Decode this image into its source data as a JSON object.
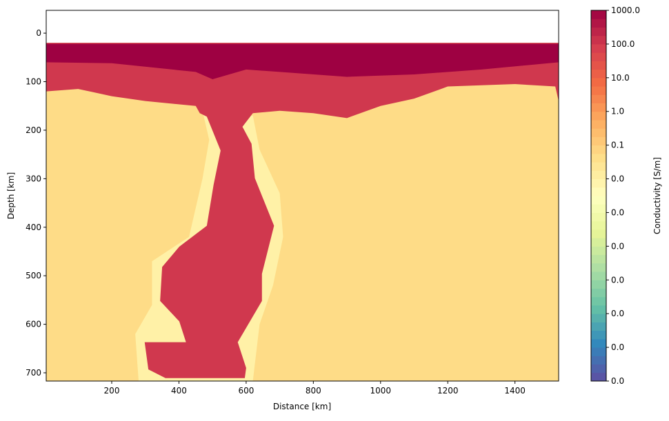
{
  "chart_data": {
    "type": "heatmap",
    "xlabel": "Distance [km]",
    "ylabel": "Depth [km]",
    "xlim": [
      5,
      1530
    ],
    "xticks": [
      200,
      400,
      600,
      800,
      1000,
      1200,
      1400
    ],
    "ylim": [
      -47,
      717
    ],
    "yticks": [
      0,
      100,
      200,
      300,
      400,
      500,
      600,
      700
    ],
    "y_inverted": true,
    "colorbar": {
      "label": "Conductivity [S/m]",
      "log": true,
      "lim": [
        1e-08,
        1000
      ],
      "ticks": [
        {
          "value": 1000,
          "label": "1000.0"
        },
        {
          "value": 100,
          "label": "100.0"
        },
        {
          "value": 10,
          "label": "10.0"
        },
        {
          "value": 1,
          "label": "1.0"
        },
        {
          "value": 0.1,
          "label": "0.1"
        },
        {
          "value": 0.01,
          "label": "0.0"
        },
        {
          "value": 0.001,
          "label": "0.0"
        },
        {
          "value": 0.0001,
          "label": "0.0"
        },
        {
          "value": 1e-05,
          "label": "0.0"
        },
        {
          "value": 1e-06,
          "label": "0.0"
        },
        {
          "value": 1e-07,
          "label": "0.0"
        },
        {
          "value": 1e-08,
          "label": "0.0"
        }
      ]
    },
    "colormap": [
      "#5e4fa2",
      "#3288bd",
      "#66c2a5",
      "#abdda4",
      "#e6f598",
      "#ffffbf",
      "#fee08b",
      "#fdae61",
      "#f46d43",
      "#d53e4f",
      "#9e0142"
    ],
    "regions": [
      {
        "value": 0.05,
        "points": [
          [
            5,
            20
          ],
          [
            1530,
            20
          ],
          [
            1530,
            717
          ],
          [
            5,
            717
          ]
        ]
      },
      {
        "value": 0.01,
        "points": [
          [
            470,
            160
          ],
          [
            620,
            170
          ],
          [
            640,
            240
          ],
          [
            700,
            330
          ],
          [
            710,
            420
          ],
          [
            680,
            520
          ],
          [
            640,
            600
          ],
          [
            620,
            717
          ],
          [
            280,
            717
          ],
          [
            270,
            620
          ],
          [
            320,
            560
          ],
          [
            320,
            470
          ],
          [
            430,
            420
          ],
          [
            470,
            300
          ],
          [
            490,
            220
          ]
        ]
      },
      {
        "value": 100,
        "points": [
          [
            5,
            20
          ],
          [
            1530,
            20
          ],
          [
            1530,
            140
          ],
          [
            1520,
            110
          ],
          [
            1400,
            105
          ],
          [
            1200,
            110
          ],
          [
            1100,
            135
          ],
          [
            1000,
            150
          ],
          [
            900,
            175
          ],
          [
            800,
            165
          ],
          [
            700,
            160
          ],
          [
            620,
            165
          ],
          [
            589,
            193
          ],
          [
            616,
            228
          ],
          [
            626,
            299
          ],
          [
            683,
            397
          ],
          [
            647,
            496
          ],
          [
            647,
            552
          ],
          [
            575,
            637
          ],
          [
            600,
            690
          ],
          [
            596,
            711
          ],
          [
            360,
            711
          ],
          [
            309,
            693
          ],
          [
            298,
            637
          ],
          [
            421,
            637
          ],
          [
            401,
            594
          ],
          [
            344,
            552
          ],
          [
            350,
            482
          ],
          [
            401,
            440
          ],
          [
            483,
            397
          ],
          [
            503,
            313
          ],
          [
            524,
            242
          ],
          [
            483,
            172
          ],
          [
            462,
            165
          ],
          [
            450,
            150
          ],
          [
            300,
            140
          ],
          [
            200,
            130
          ],
          [
            100,
            115
          ],
          [
            5,
            120
          ]
        ]
      },
      {
        "value": 1000,
        "points": [
          [
            5,
            22
          ],
          [
            1530,
            22
          ],
          [
            1530,
            60
          ],
          [
            1300,
            75
          ],
          [
            1100,
            85
          ],
          [
            900,
            90
          ],
          [
            700,
            80
          ],
          [
            600,
            75
          ],
          [
            500,
            95
          ],
          [
            450,
            80
          ],
          [
            200,
            62
          ],
          [
            5,
            60
          ]
        ]
      }
    ]
  }
}
